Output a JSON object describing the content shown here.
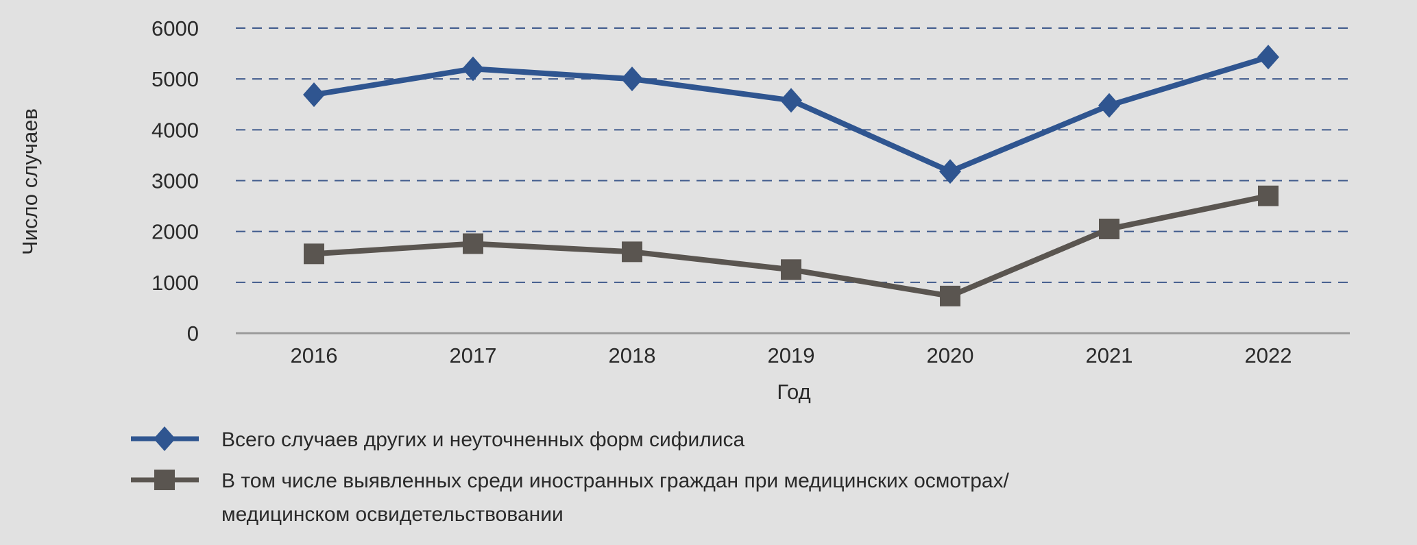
{
  "chart_data": {
    "type": "line",
    "title": "",
    "xlabel": "Год",
    "ylabel": "Число случаев",
    "x": [
      "2016",
      "2017",
      "2018",
      "2019",
      "2020",
      "2021",
      "2022"
    ],
    "ylim": [
      0,
      6000
    ],
    "yticks": [
      "0",
      "1000",
      "2000",
      "3000",
      "4000",
      "5000",
      "6000"
    ],
    "grid": true,
    "legend_position": "bottom-left",
    "series": [
      {
        "name": "Всего случаев  других и неуточненных форм сифилиса",
        "marker": "diamond",
        "color": "#2f5590",
        "values": [
          4690,
          5200,
          5000,
          4580,
          3180,
          4480,
          5430
        ]
      },
      {
        "name_lines": [
          "В том числе выявленных среди иностранных граждан при медицинских осмотрах/",
          "медицинском освидетельствовании"
        ],
        "marker": "square",
        "color": "#5a5550",
        "values": [
          1560,
          1760,
          1600,
          1250,
          730,
          2050,
          2700
        ]
      }
    ]
  }
}
